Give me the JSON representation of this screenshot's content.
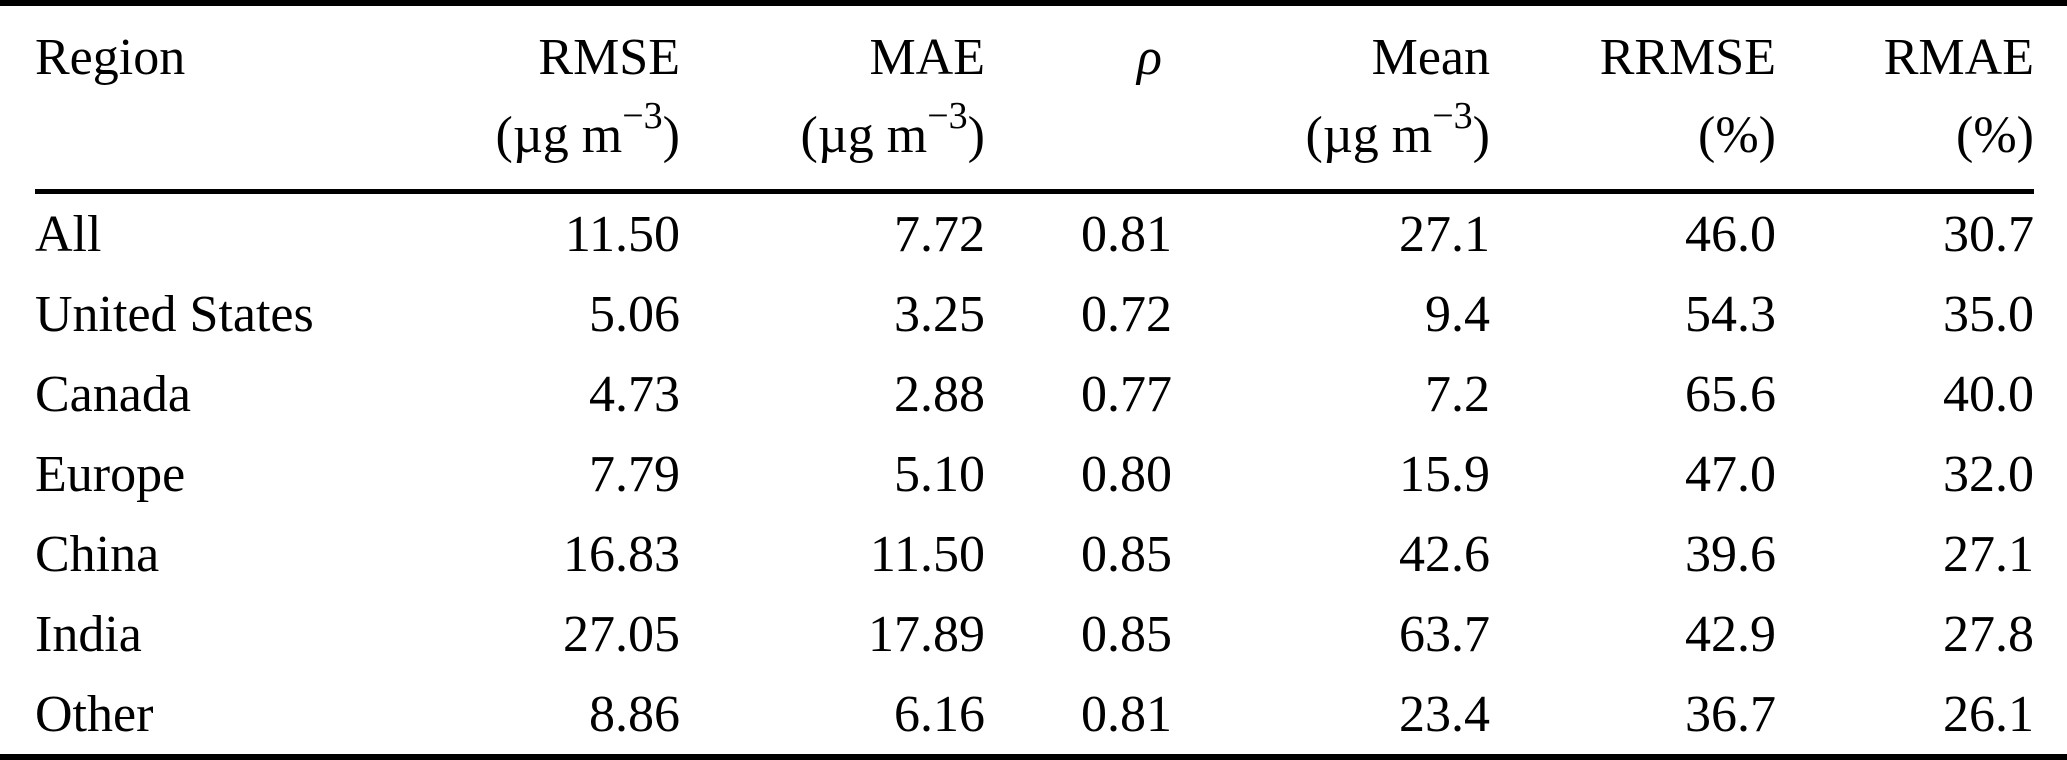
{
  "table": {
    "columns": [
      {
        "key": "region",
        "label": "Region",
        "unit_pre": "",
        "unit_sup": "",
        "unit_post": ""
      },
      {
        "key": "rmse",
        "label": "RMSE",
        "unit_pre": "(µg m",
        "unit_sup": "−3",
        "unit_post": ")"
      },
      {
        "key": "mae",
        "label": "MAE",
        "unit_pre": "(µg m",
        "unit_sup": "−3",
        "unit_post": ")"
      },
      {
        "key": "rho",
        "label": "ρ",
        "unit_pre": "",
        "unit_sup": "",
        "unit_post": ""
      },
      {
        "key": "mean",
        "label": "Mean",
        "unit_pre": "(µg m",
        "unit_sup": "−3",
        "unit_post": ")"
      },
      {
        "key": "rrmse",
        "label": "RRMSE",
        "unit_pre": "(%)",
        "unit_sup": "",
        "unit_post": ""
      },
      {
        "key": "rmae",
        "label": "RMAE",
        "unit_pre": "(%)",
        "unit_sup": "",
        "unit_post": ""
      }
    ],
    "rows": [
      {
        "region": "All",
        "rmse": "11.50",
        "mae": "7.72",
        "rho": "0.81",
        "mean": "27.1",
        "rrmse": "46.0",
        "rmae": "30.7"
      },
      {
        "region": "United States",
        "rmse": "5.06",
        "mae": "3.25",
        "rho": "0.72",
        "mean": "9.4",
        "rrmse": "54.3",
        "rmae": "35.0"
      },
      {
        "region": "Canada",
        "rmse": "4.73",
        "mae": "2.88",
        "rho": "0.77",
        "mean": "7.2",
        "rrmse": "65.6",
        "rmae": "40.0"
      },
      {
        "region": "Europe",
        "rmse": "7.79",
        "mae": "5.10",
        "rho": "0.80",
        "mean": "15.9",
        "rrmse": "47.0",
        "rmae": "32.0"
      },
      {
        "region": "China",
        "rmse": "16.83",
        "mae": "11.50",
        "rho": "0.85",
        "mean": "42.6",
        "rrmse": "39.6",
        "rmae": "27.1"
      },
      {
        "region": "India",
        "rmse": "27.05",
        "mae": "17.89",
        "rho": "0.85",
        "mean": "63.7",
        "rrmse": "42.9",
        "rmae": "27.8"
      },
      {
        "region": "Other",
        "rmse": "8.86",
        "mae": "6.16",
        "rho": "0.81",
        "mean": "23.4",
        "rrmse": "36.7",
        "rmae": "26.1"
      }
    ]
  },
  "chart_data": {
    "type": "table",
    "title": "",
    "columns": [
      "Region",
      "RMSE (µg m−3)",
      "MAE (µg m−3)",
      "ρ",
      "Mean (µg m−3)",
      "RRMSE (%)",
      "RMAE (%)"
    ],
    "rows": [
      [
        "All",
        11.5,
        7.72,
        0.81,
        27.1,
        46.0,
        30.7
      ],
      [
        "United States",
        5.06,
        3.25,
        0.72,
        9.4,
        54.3,
        35.0
      ],
      [
        "Canada",
        4.73,
        2.88,
        0.77,
        7.2,
        65.6,
        40.0
      ],
      [
        "Europe",
        7.79,
        5.1,
        0.8,
        15.9,
        47.0,
        32.0
      ],
      [
        "China",
        16.83,
        11.5,
        0.85,
        42.6,
        39.6,
        27.1
      ],
      [
        "India",
        27.05,
        17.89,
        0.85,
        63.7,
        42.9,
        27.8
      ],
      [
        "Other",
        8.86,
        6.16,
        0.81,
        23.4,
        36.7,
        26.1
      ]
    ]
  }
}
